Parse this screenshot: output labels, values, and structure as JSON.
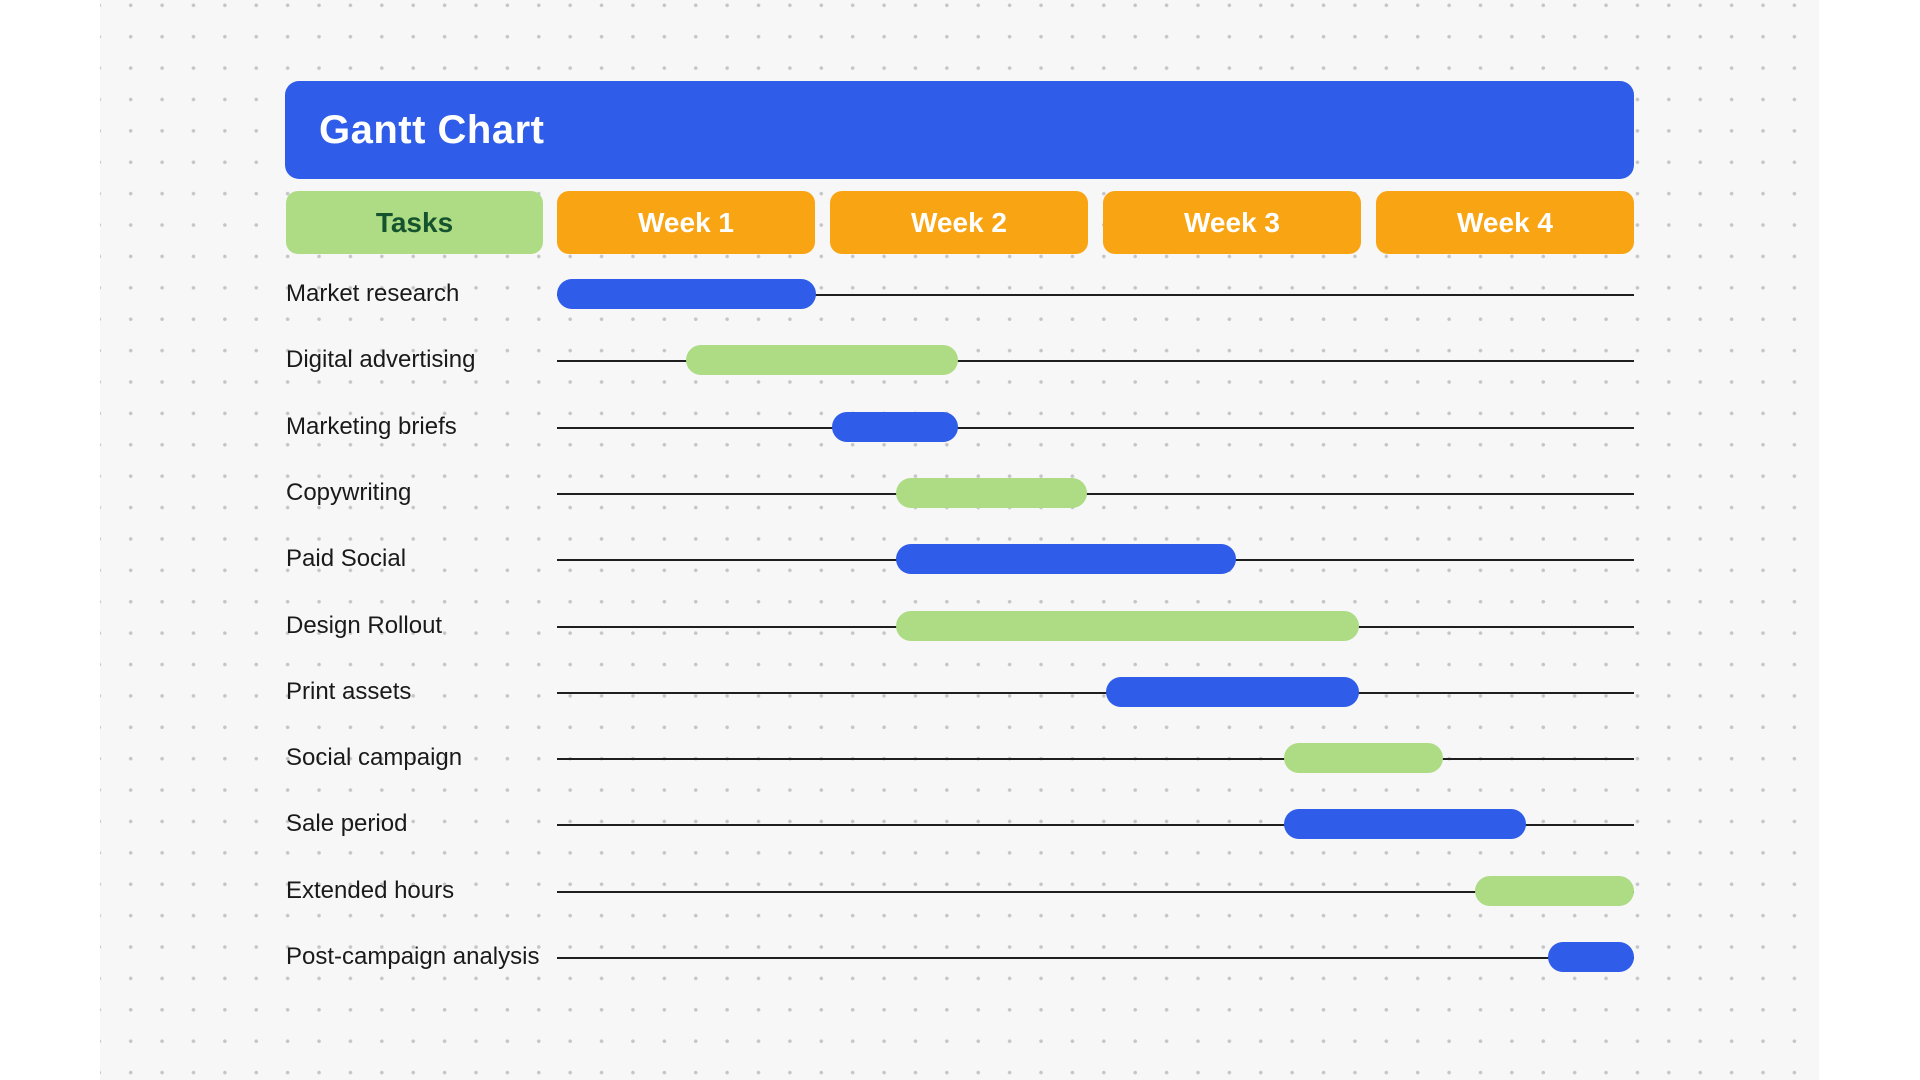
{
  "colors": {
    "blue": "#2F5DE9",
    "green": "#AEDC85",
    "orange": "#F9A413",
    "green_header_text": "#14532D",
    "line": "#1F1F1F",
    "board_background": "#F7F7F8",
    "grid_dot": "#C5C5C7",
    "title_text": "#FFFFFF",
    "week_text": "#FFFFFF",
    "task_label_text": "#1A1A1A"
  },
  "chart_data": {
    "type": "gantt",
    "title": "Gantt Chart",
    "columns": [
      "Tasks",
      "Week 1",
      "Week 2",
      "Week 3",
      "Week 4"
    ],
    "timeline_weeks": 4,
    "grid": "dotted-background",
    "legend_position": "none",
    "tasks": [
      {
        "name": "Market research",
        "start_week": 0.0,
        "end_week": 0.96,
        "color": "blue"
      },
      {
        "name": "Digital advertising",
        "start_week": 0.48,
        "end_week": 1.49,
        "color": "green"
      },
      {
        "name": "Marketing briefs",
        "start_week": 1.02,
        "end_week": 1.49,
        "color": "blue"
      },
      {
        "name": "Copywriting",
        "start_week": 1.26,
        "end_week": 1.97,
        "color": "green"
      },
      {
        "name": "Paid Social",
        "start_week": 1.26,
        "end_week": 2.52,
        "color": "blue"
      },
      {
        "name": "Design Rollout",
        "start_week": 1.26,
        "end_week": 2.98,
        "color": "green"
      },
      {
        "name": "Print assets",
        "start_week": 2.04,
        "end_week": 2.98,
        "color": "blue"
      },
      {
        "name": "Social campaign",
        "start_week": 2.7,
        "end_week": 3.29,
        "color": "green"
      },
      {
        "name": "Sale period",
        "start_week": 2.7,
        "end_week": 3.6,
        "color": "blue"
      },
      {
        "name": "Extended hours",
        "start_week": 3.41,
        "end_week": 4.0,
        "color": "green"
      },
      {
        "name": "Post-campaign analysis",
        "start_week": 3.68,
        "end_week": 4.0,
        "color": "blue"
      }
    ]
  }
}
